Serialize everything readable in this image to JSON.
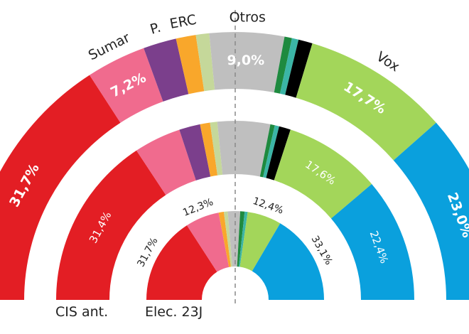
{
  "chart_data": {
    "type": "pie",
    "variant": "semi-donut (hemicycle), three concentric rings",
    "parties": [
      {
        "key": "psoe",
        "name": "",
        "color": "#e31e24"
      },
      {
        "key": "sumar",
        "name": "Sumar",
        "color": "#f06b8e"
      },
      {
        "key": "podemos",
        "name": "P.",
        "color": "#7b3f8c"
      },
      {
        "key": "erc",
        "name": "ERC",
        "color": "#f9a72b"
      },
      {
        "key": "bildu",
        "name": "",
        "color": "#c5d89a"
      },
      {
        "key": "otros",
        "name": "Otros",
        "color": "#bfbfbf"
      },
      {
        "key": "dkgreen",
        "name": "",
        "color": "#1e8a3f"
      },
      {
        "key": "teal",
        "name": "",
        "color": "#3bb5a6"
      },
      {
        "key": "black",
        "name": "",
        "color": "#000000"
      },
      {
        "key": "vox",
        "name": "Vox",
        "color": "#a3d65a"
      },
      {
        "key": "pp",
        "name": "",
        "color": "#0aa0dd"
      }
    ],
    "rings": [
      {
        "ring": "outer",
        "title": "",
        "values": {
          "psoe": 31.7,
          "sumar": 7.2,
          "podemos": 4.0,
          "erc": 2.4,
          "bildu": 1.6,
          "otros": 9.0,
          "dkgreen": 0.9,
          "teal": 0.8,
          "black": 1.7,
          "vox": 17.7,
          "pp": 23.0
        },
        "labels": {
          "psoe": "31,7%",
          "sumar": "7,2%",
          "otros": "9,0%",
          "vox": "17,7%",
          "pp": "23,0%"
        }
      },
      {
        "ring": "middle",
        "title": "CIS ant.",
        "values": {
          "psoe": 31.4,
          "sumar": 8.5,
          "podemos": 3.8,
          "erc": 1.8,
          "bildu": 1.3,
          "otros": 9.5,
          "dkgreen": 0.8,
          "teal": 0.8,
          "black": 2.1,
          "vox": 17.6,
          "pp": 22.4
        },
        "labels": {
          "psoe": "31,4%",
          "vox": "17,6%",
          "pp": "22,4%"
        }
      },
      {
        "ring": "inner",
        "title": "Elec. 23J",
        "values": {
          "psoe": 31.7,
          "sumar": 12.3,
          "podemos": 0,
          "erc": 1.9,
          "bildu": 1.4,
          "otros": 4.5,
          "dkgreen": 1.6,
          "teal": 1.1,
          "black": 0,
          "vox": 12.4,
          "pp": 33.1
        },
        "labels": {
          "psoe": "31,7%",
          "sumar": "12,3%",
          "vox": "12,4%",
          "pp": "33,1%"
        }
      }
    ],
    "center_line": "dashed vertical at 50%"
  }
}
